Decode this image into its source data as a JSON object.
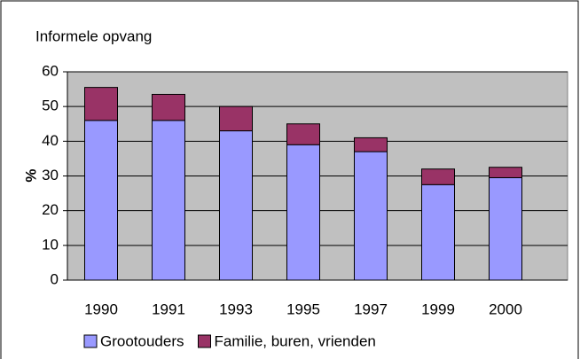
{
  "chart_data": {
    "type": "stacked_bar",
    "title": "Informele opvang",
    "ylabel": "%",
    "categories": [
      "1990",
      "1991",
      "1993",
      "1995",
      "1997",
      "1999",
      "2000"
    ],
    "series": [
      {
        "name": "Grootouders",
        "color": "#9999ff",
        "values": [
          46,
          46,
          43,
          39,
          37,
          27.5,
          29.5
        ]
      },
      {
        "name": "Familie, buren, vrienden",
        "color": "#993366",
        "values": [
          9.5,
          7.5,
          7,
          6,
          4,
          4.5,
          3
        ]
      }
    ],
    "ylim": [
      0,
      60
    ],
    "yticks": [
      0,
      10,
      20,
      30,
      40,
      50,
      60
    ],
    "grid": true
  }
}
